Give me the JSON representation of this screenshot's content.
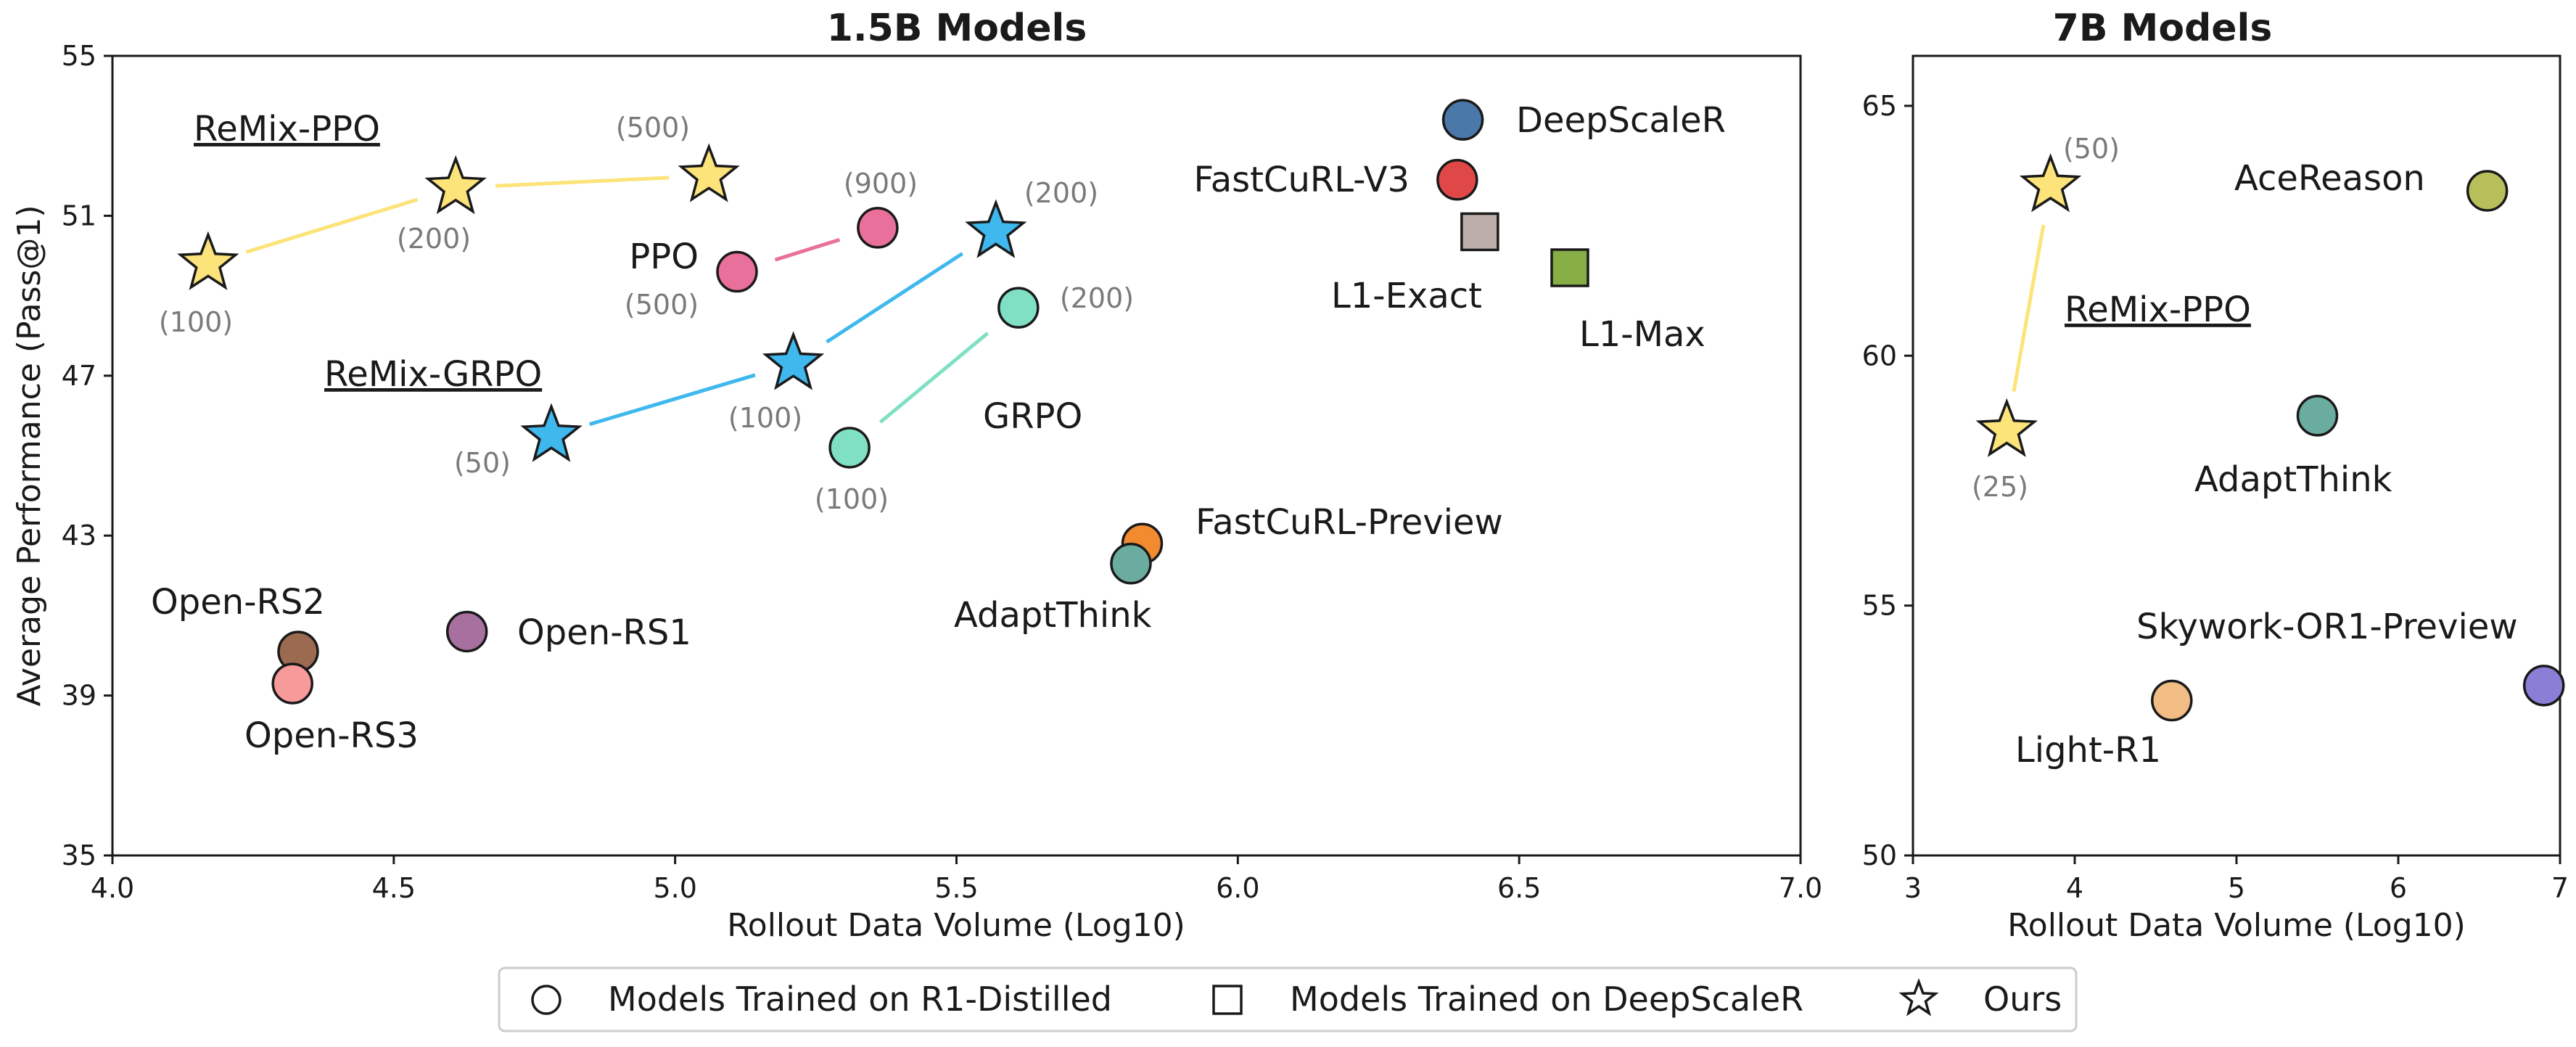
{
  "chart_data": [
    {
      "type": "scatter",
      "title": "1.5B Models",
      "xlabel": "Rollout Data Volume (Log10)",
      "ylabel": "Average Performance (Pass@1)",
      "xlim": [
        4.0,
        7.0
      ],
      "ylim": [
        35,
        55
      ],
      "xticks": [
        "4.0",
        "4.5",
        "5.0",
        "5.5",
        "6.0",
        "6.5",
        "7.0"
      ],
      "yticks": [
        "35",
        "39",
        "43",
        "47",
        "51",
        "55"
      ],
      "grid": false,
      "points": [
        {
          "name": "DeepScaleR",
          "x": 6.4,
          "y": 53.4,
          "shape": "circle",
          "color": "#4a78a8"
        },
        {
          "name": "FastCuRL-V3",
          "x": 6.39,
          "y": 51.9,
          "shape": "circle",
          "color": "#e04848"
        },
        {
          "name": "L1-Exact",
          "x": 6.43,
          "y": 50.6,
          "shape": "square",
          "color": "#bcaea9"
        },
        {
          "name": "L1-Max",
          "x": 6.59,
          "y": 49.7,
          "shape": "square",
          "color": "#86ae45"
        },
        {
          "name": "FastCuRL-Preview",
          "x": 5.83,
          "y": 42.8,
          "shape": "circle",
          "color": "#f28a30"
        },
        {
          "name": "AdaptThink",
          "x": 5.81,
          "y": 42.3,
          "shape": "circle",
          "color": "#6aaca0"
        },
        {
          "name": "Open-RS1",
          "x": 4.63,
          "y": 40.6,
          "shape": "circle",
          "color": "#a8709e"
        },
        {
          "name": "Open-RS2",
          "x": 4.33,
          "y": 40.1,
          "shape": "circle",
          "color": "#9b6a50"
        },
        {
          "name": "Open-RS3",
          "x": 4.32,
          "y": 39.3,
          "shape": "circle",
          "color": "#f79a9a"
        }
      ],
      "series": [
        {
          "name": "PPO",
          "color": "#e8709a",
          "shape": "circle",
          "points": [
            {
              "x": 5.11,
              "y": 49.6,
              "label": "(500)"
            },
            {
              "x": 5.36,
              "y": 50.7,
              "label": "(900)"
            }
          ]
        },
        {
          "name": "GRPO",
          "color": "#7fe0c4",
          "shape": "circle",
          "points": [
            {
              "x": 5.31,
              "y": 45.2,
              "label": "(100)"
            },
            {
              "x": 5.61,
              "y": 48.7,
              "label": "(200)"
            }
          ]
        },
        {
          "name": "ReMix-PPO",
          "color": "#fce37a",
          "shape": "star",
          "points": [
            {
              "x": 4.17,
              "y": 49.8,
              "label": "(100)"
            },
            {
              "x": 4.61,
              "y": 51.7,
              "label": "(200)"
            },
            {
              "x": 5.06,
              "y": 52.0,
              "label": "(500)"
            }
          ]
        },
        {
          "name": "ReMix-GRPO",
          "color": "#3fb8ee",
          "shape": "star",
          "points": [
            {
              "x": 4.78,
              "y": 45.5,
              "label": "(50)"
            },
            {
              "x": 5.21,
              "y": 47.3,
              "label": "(100)"
            },
            {
              "x": 5.57,
              "y": 50.6,
              "label": "(200)"
            }
          ]
        }
      ]
    },
    {
      "type": "scatter",
      "title": "7B Models",
      "xlabel": "Rollout Data Volume (Log10)",
      "ylabel": "",
      "xlim": [
        3,
        7
      ],
      "ylim": [
        50,
        66
      ],
      "xticks": [
        "3",
        "4",
        "5",
        "6",
        "7"
      ],
      "yticks": [
        "50",
        "55",
        "60",
        "65"
      ],
      "grid": false,
      "points": [
        {
          "name": "AceReason",
          "x": 6.55,
          "y": 63.3,
          "shape": "circle",
          "color": "#b8bf5a"
        },
        {
          "name": "AdaptThink",
          "x": 5.5,
          "y": 58.8,
          "shape": "circle",
          "color": "#6aaca0"
        },
        {
          "name": "Skywork-OR1-Preview",
          "x": 6.9,
          "y": 53.4,
          "shape": "circle",
          "color": "#8a7fd6"
        },
        {
          "name": "Light-R1",
          "x": 4.6,
          "y": 53.1,
          "shape": "circle",
          "color": "#f1bd85"
        }
      ],
      "series": [
        {
          "name": "ReMix-PPO",
          "color": "#fce37a",
          "shape": "star",
          "points": [
            {
              "x": 3.58,
              "y": 58.5,
              "label": "(25)"
            },
            {
              "x": 3.85,
              "y": 63.4,
              "label": "(50)"
            }
          ]
        }
      ]
    }
  ],
  "legend": {
    "placement": "bottom-center",
    "entries": [
      {
        "shape": "circle",
        "label": "Models Trained on R1-Distilled"
      },
      {
        "shape": "square",
        "label": "Models Trained on DeepScaleR"
      },
      {
        "shape": "star",
        "label": "Ours"
      }
    ]
  }
}
